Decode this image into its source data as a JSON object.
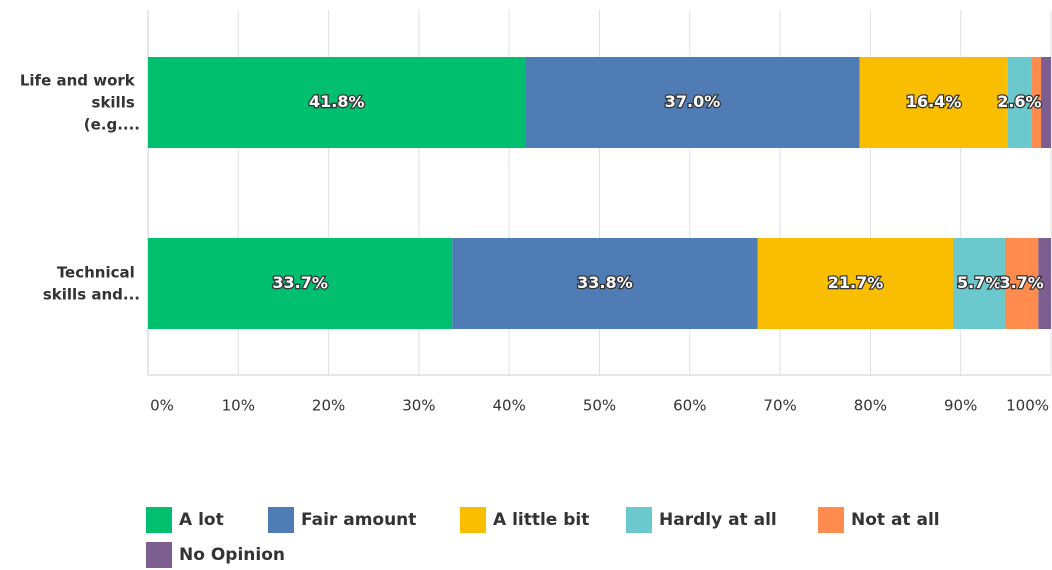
{
  "chart_data": {
    "type": "stacked_bar_horizontal",
    "categories": [
      "Life and work skills (e.g....",
      "Technical skills and..."
    ],
    "series": [
      {
        "name": "A lot",
        "color": "#00bf6f",
        "values": [
          41.8,
          33.7
        ]
      },
      {
        "name": "Fair amount",
        "color": "#507cb6",
        "values": [
          37.0,
          33.8
        ],
        "value_labels": [
          "37.0%",
          "33.8%"
        ]
      },
      {
        "name": "A little bit",
        "color": "#f9be00",
        "values": [
          16.4,
          21.7
        ]
      },
      {
        "name": "Hardly at all",
        "color": "#6bc8cd",
        "values": [
          2.6,
          5.7
        ]
      },
      {
        "name": "Not at all",
        "color": "#ff8b4f",
        "values": [
          1.1,
          3.7
        ]
      },
      {
        "name": "No Opinion",
        "color": "#7d5e90",
        "values": [
          1.1,
          1.4
        ]
      }
    ],
    "value_labels_all": null,
    "xlim": [
      0,
      100
    ],
    "xticks": [
      {
        "value": 0,
        "label": "0%"
      },
      {
        "value": 10,
        "label": "10%"
      },
      {
        "value": 20,
        "label": "20%"
      },
      {
        "value": 30,
        "label": "30%"
      },
      {
        "value": 40,
        "label": "40%"
      },
      {
        "value": 50,
        "label": "50%"
      },
      {
        "value": 60,
        "label": "60%"
      },
      {
        "value": 70,
        "label": "70%"
      },
      {
        "value": 80,
        "label": "80%"
      },
      {
        "value": 90,
        "label": "90%"
      },
      {
        "value": 100,
        "label": "100%"
      }
    ],
    "grid": true,
    "legend": "bottom"
  }
}
